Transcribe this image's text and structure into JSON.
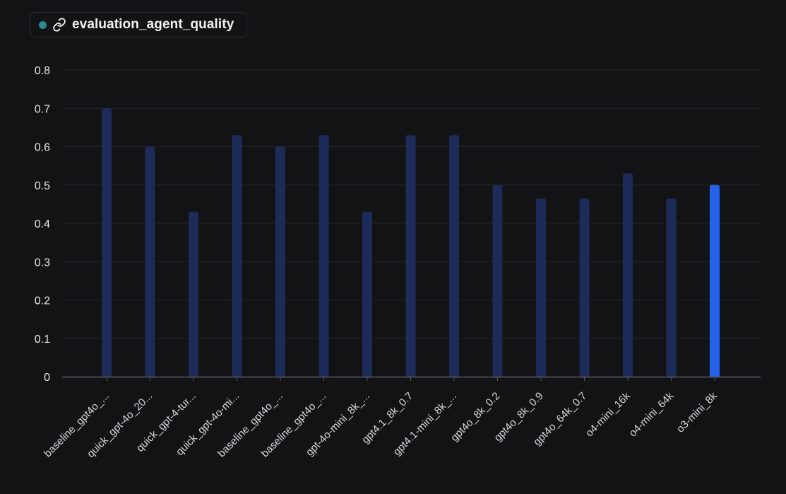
{
  "legend": {
    "label": "evaluation_agent_quality",
    "dot_color": "#2d8a95",
    "icon": "link-icon"
  },
  "chart_data": {
    "type": "bar",
    "title": "",
    "xlabel": "",
    "ylabel": "",
    "ylim": [
      0,
      0.8
    ],
    "yticks": [
      "0",
      "0.1",
      "0.2",
      "0.3",
      "0.4",
      "0.5",
      "0.6",
      "0.7",
      "0.8"
    ],
    "grid": true,
    "categories": [
      "baseline_gpt4o_...",
      "quick_gpt-4o_20...",
      "quick_gpt-4-tur...",
      "quick_gpt-4o-mi...",
      "baseline_gpt4o_...",
      "baseline_gpt4o_...",
      "gpt-4o-mini_8k_...",
      "gpt4.1_8k_0.7",
      "gpt4.1-mini_8k_...",
      "gpt4o_8k_0.2",
      "gpt4o_8k_0.9",
      "gpt4o_64k_0.7",
      "o4-mini_16k",
      "o4-mini_64k",
      "o3-mini_8k"
    ],
    "series": [
      {
        "values": [
          0.7,
          0.6,
          0.43,
          0.63,
          0.6,
          0.63,
          0.43,
          0.63,
          0.63,
          0.5,
          0.465,
          0.465,
          0.53,
          0.465,
          0.5
        ]
      }
    ],
    "highlight_index": 14,
    "colors": {
      "bar": "#1c2b57",
      "highlight": "#2563eb",
      "grid": "#25262b",
      "axis": "#585a62"
    }
  }
}
